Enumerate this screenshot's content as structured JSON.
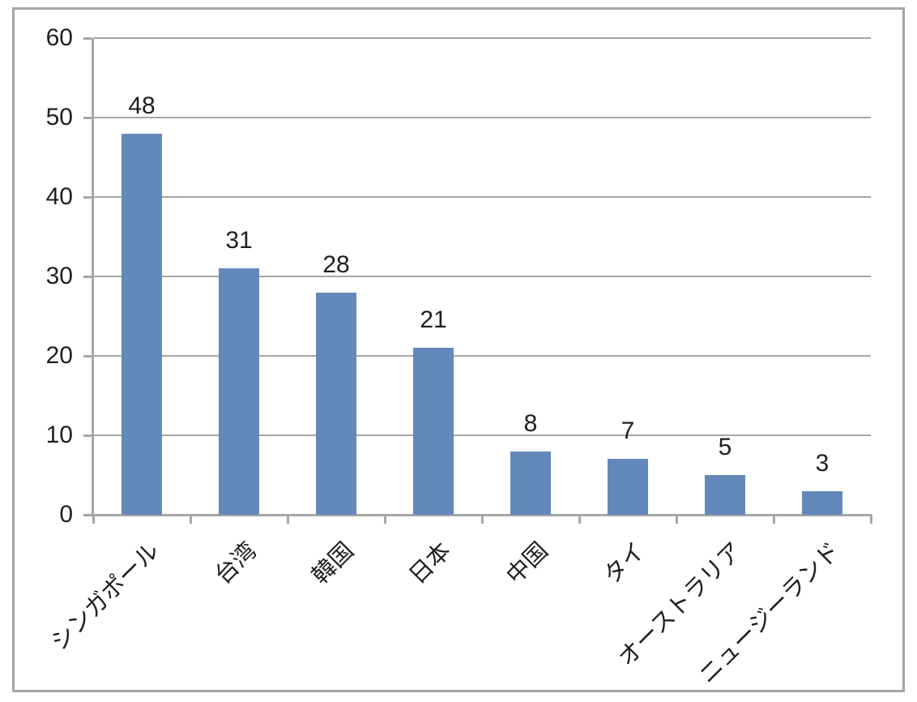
{
  "chart_data": {
    "type": "bar",
    "title": "",
    "xlabel": "",
    "ylabel": "",
    "categories": [
      "シンガポール",
      "台湾",
      "韓国",
      "日本",
      "中国",
      "タイ",
      "オーストラリア",
      "ニュージーランド"
    ],
    "values": [
      48,
      31,
      28,
      21,
      8,
      7,
      5,
      3
    ],
    "data_labels": [
      "48",
      "31",
      "28",
      "21",
      "8",
      "7",
      "5",
      "3"
    ],
    "ylim": [
      0,
      60
    ],
    "ytick_step": 10,
    "ytick_labels": [
      "0",
      "10",
      "20",
      "30",
      "40",
      "50",
      "60"
    ],
    "grid": "horizontal",
    "legend": "none",
    "colors": {
      "bar": "#6389BB",
      "grid": "#A6A6A6",
      "axis": "#A6A6A6",
      "frame_border": "#A6A6A6",
      "text": "#1f1f1f",
      "background": "#ffffff"
    }
  }
}
